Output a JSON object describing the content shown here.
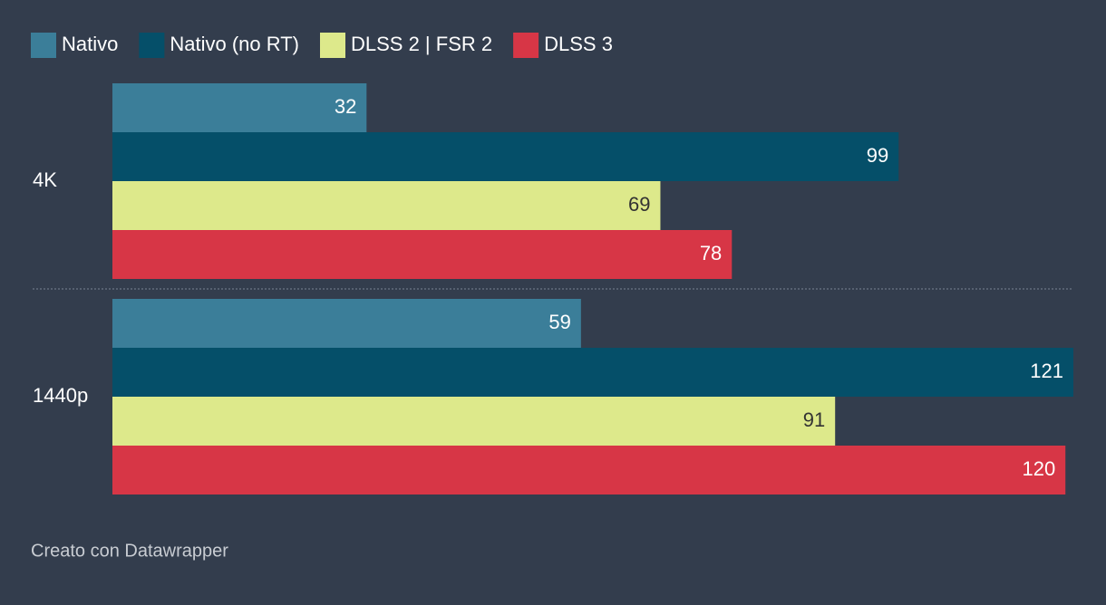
{
  "chart_data": {
    "type": "grouped-bar-horizontal",
    "categories": [
      "4K",
      "1440p"
    ],
    "series": [
      {
        "name": "Nativo",
        "color": "#3b7e99",
        "values": [
          32,
          59
        ]
      },
      {
        "name": "Nativo (no RT)",
        "color": "#054f69",
        "values": [
          99,
          121
        ]
      },
      {
        "name": "DLSS 2 | FSR 2",
        "color": "#dde98b",
        "values": [
          69,
          91
        ]
      },
      {
        "name": "DLSS 3",
        "color": "#d73646",
        "values": [
          78,
          120
        ]
      }
    ],
    "caption": "Creato con Datawrapper"
  }
}
